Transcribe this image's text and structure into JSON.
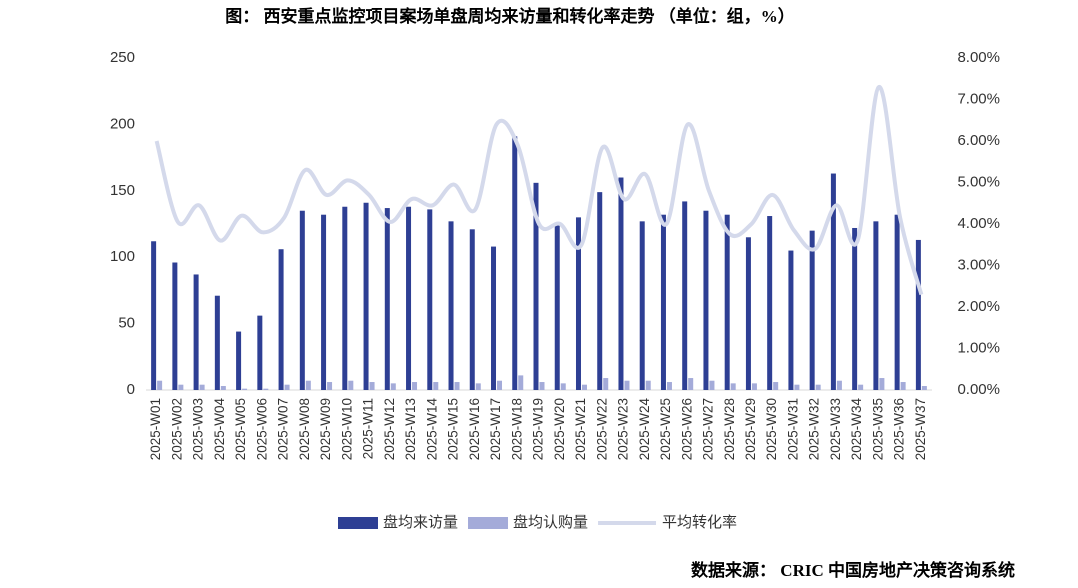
{
  "chart_data": {
    "type": "bar",
    "title": "图： 西安重点监控项目案场单盘周均来访量和转化率走势 （单位：组，%）",
    "source": "数据来源： CRIC 中国房地产决策咨询系统",
    "categories": [
      "2025-W01",
      "2025-W02",
      "2025-W03",
      "2025-W04",
      "2025-W05",
      "2025-W06",
      "2025-W07",
      "2025-W08",
      "2025-W09",
      "2025-W10",
      "2025-W11",
      "2025-W12",
      "2025-W13",
      "2025-W14",
      "2025-W15",
      "2025-W16",
      "2025-W17",
      "2025-W18",
      "2025-W19",
      "2025-W20",
      "2025-W21",
      "2025-W22",
      "2025-W23",
      "2025-W24",
      "2025-W25",
      "2025-W26",
      "2025-W27",
      "2025-W28",
      "2025-W29",
      "2025-W30",
      "2025-W31",
      "2025-W32",
      "2025-W33",
      "2025-W34",
      "2025-W35",
      "2025-W36",
      "2025-W37"
    ],
    "series": [
      {
        "name": "盘均来访量",
        "type": "bar",
        "color": "#2e3f94",
        "values": [
          112,
          96,
          87,
          71,
          44,
          56,
          106,
          135,
          132,
          138,
          141,
          137,
          138,
          136,
          127,
          121,
          108,
          191,
          156,
          126,
          130,
          149,
          160,
          127,
          132,
          142,
          135,
          132,
          115,
          131,
          105,
          120,
          163,
          122,
          127,
          132,
          113
        ]
      },
      {
        "name": "盘均认购量",
        "type": "bar",
        "color": "#a4abd9",
        "values": [
          7,
          4,
          4,
          3,
          1,
          1,
          4,
          7,
          6,
          7,
          6,
          5,
          6,
          6,
          6,
          5,
          7,
          11,
          6,
          5,
          4,
          9,
          7,
          7,
          6,
          9,
          7,
          5,
          5,
          6,
          4,
          4,
          7,
          4,
          9,
          6,
          3
        ]
      },
      {
        "name": "平均转化率",
        "type": "line",
        "axis": "y2",
        "color": "#d4d9eb",
        "values": [
          6.0,
          4.05,
          4.45,
          3.6,
          4.2,
          3.8,
          4.15,
          5.3,
          4.7,
          5.05,
          4.7,
          4.05,
          4.6,
          4.45,
          4.95,
          4.35,
          6.4,
          5.9,
          4.0,
          4.0,
          3.5,
          5.85,
          4.6,
          5.2,
          4.0,
          6.4,
          4.8,
          3.75,
          4.0,
          4.7,
          3.85,
          3.4,
          4.45,
          3.6,
          7.3,
          4.15,
          2.3
        ]
      }
    ],
    "ylim": [
      0,
      250
    ],
    "yticks": [
      0,
      50,
      100,
      150,
      200,
      250
    ],
    "y2lim": [
      0,
      8
    ],
    "y2ticks": [
      {
        "value": 0,
        "label": "0.00%"
      },
      {
        "value": 1,
        "label": "1.00%"
      },
      {
        "value": 2,
        "label": "2.00%"
      },
      {
        "value": 3,
        "label": "3.00%"
      },
      {
        "value": 4,
        "label": "4.00%"
      },
      {
        "value": 5,
        "label": "5.00%"
      },
      {
        "value": 6,
        "label": "6.00%"
      },
      {
        "value": 7,
        "label": "7.00%"
      },
      {
        "value": 8,
        "label": "8.00%"
      }
    ],
    "grid": false,
    "legend": "bottom"
  }
}
